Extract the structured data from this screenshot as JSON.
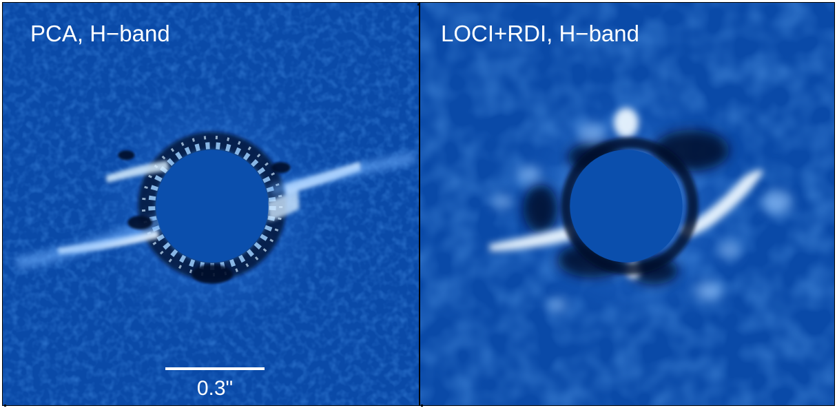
{
  "panels": [
    {
      "label": "PCA, H−band",
      "scalebar_label": "0.3\""
    },
    {
      "label": "LOCI+RDI, H−band"
    }
  ],
  "colors": {
    "background_blue": "#0a4aa8",
    "mask_blue": "#0b4fad",
    "dark": "#020a2a",
    "bright": "#eaf6ff",
    "label": "#ffffff"
  }
}
